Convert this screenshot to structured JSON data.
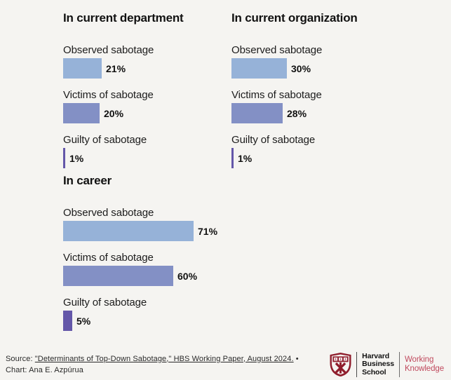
{
  "page": {
    "background": "#f5f4f1"
  },
  "chart_data": [
    {
      "type": "bar",
      "orientation": "horizontal",
      "title": "In current department",
      "categories": [
        "Observed sabotage",
        "Victims of sabotage",
        "Guilty of sabotage"
      ],
      "values": [
        21,
        20,
        1
      ],
      "unit": "%",
      "xlim": [
        0,
        100
      ],
      "grid": false,
      "legend": false
    },
    {
      "type": "bar",
      "orientation": "horizontal",
      "title": "In current organization",
      "categories": [
        "Observed sabotage",
        "Victims of sabotage",
        "Guilty of sabotage"
      ],
      "values": [
        30,
        28,
        1
      ],
      "unit": "%",
      "xlim": [
        0,
        100
      ],
      "grid": false,
      "legend": false
    },
    {
      "type": "bar",
      "orientation": "horizontal",
      "title": "In career",
      "categories": [
        "Observed sabotage",
        "Victims of sabotage",
        "Guilty of sabotage"
      ],
      "values": [
        71,
        60,
        5
      ],
      "unit": "%",
      "xlim": [
        0,
        100
      ],
      "grid": false,
      "legend": false
    }
  ],
  "colors": {
    "bar_by_category": [
      "#96b2d8",
      "#8390c5",
      "#6457a9"
    ],
    "hbs_crimson": "#8f1d2c",
    "working_knowledge": "#c04a5e",
    "background": "#f5f4f1"
  },
  "footer": {
    "source_prefix": "Source: ",
    "source_link": "\"Determinants of Top-Down Sabotage,\" HBS Working Paper, August 2024.",
    "source_separator": " •",
    "credit": "Chart: Ana E. Azpúrua",
    "logo": {
      "school_line1": "Harvard",
      "school_line2": "Business",
      "school_line3": "School",
      "brand_line1": "Working",
      "brand_line2": "Knowledge"
    }
  }
}
